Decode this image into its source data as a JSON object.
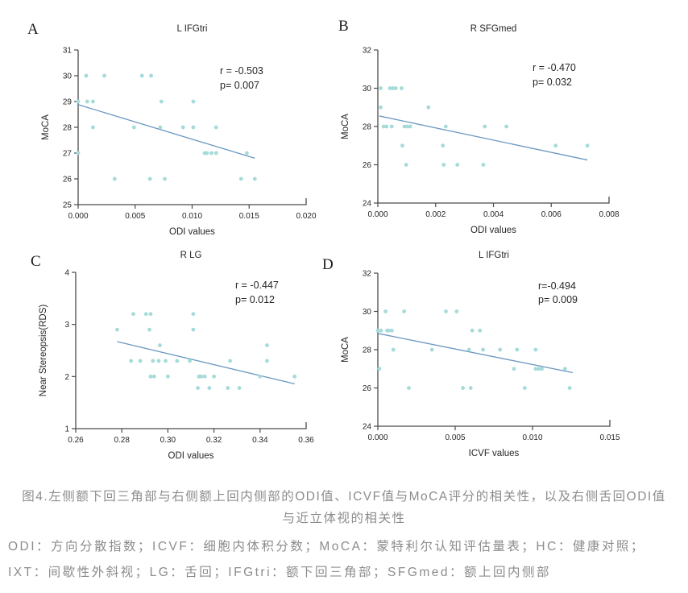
{
  "colors": {
    "point": "#a5dbd8",
    "trend": "#6b98c2",
    "axis": "#4a4a4a",
    "text": "#262626",
    "caption_text": "#8c8c8c"
  },
  "chart_data": [
    {
      "panel_label": "A",
      "type": "scatter",
      "title": "L IFGtri",
      "xlabel": "ODI values",
      "ylabel": "MoCA",
      "r_label": "r = -0.503",
      "p_label": "p= 0.007",
      "xlim": [
        0.0,
        0.02
      ],
      "ylim": [
        25,
        31
      ],
      "xticks": [
        0.0,
        0.005,
        0.01,
        0.015,
        0.02
      ],
      "xtick_labels": [
        "0.000",
        "0.005",
        "0.010",
        "0.015",
        "0.020"
      ],
      "yticks": [
        25,
        26,
        27,
        28,
        29,
        30,
        31
      ],
      "ytick_labels": [
        "25",
        "26",
        "27",
        "28",
        "29",
        "30",
        "31"
      ],
      "points": [
        [
          0.0007,
          30
        ],
        [
          0.0023,
          30
        ],
        [
          0.0056,
          30
        ],
        [
          0.0064,
          30
        ],
        [
          0.0,
          29
        ],
        [
          0.0008,
          29
        ],
        [
          0.0013,
          29
        ],
        [
          0.0073,
          29
        ],
        [
          0.0101,
          29
        ],
        [
          0.0013,
          28
        ],
        [
          0.0049,
          28
        ],
        [
          0.0072,
          28
        ],
        [
          0.0092,
          28
        ],
        [
          0.0101,
          28
        ],
        [
          0.0121,
          28
        ],
        [
          0.0,
          27
        ],
        [
          0.0111,
          27
        ],
        [
          0.0113,
          27
        ],
        [
          0.0117,
          27
        ],
        [
          0.0121,
          27
        ],
        [
          0.0148,
          27
        ],
        [
          0.0032,
          26
        ],
        [
          0.0063,
          26
        ],
        [
          0.0076,
          26
        ],
        [
          0.0143,
          26
        ],
        [
          0.0155,
          26
        ]
      ],
      "trend": {
        "x1": 0.0,
        "y1": 28.88,
        "x2": 0.0155,
        "y2": 26.8
      }
    },
    {
      "panel_label": "B",
      "type": "scatter",
      "title": "R SFGmed",
      "xlabel": "ODI values",
      "ylabel": "MoCA",
      "r_label": "r = -0.470",
      "p_label": "p= 0.032",
      "xlim": [
        0.0,
        0.008
      ],
      "ylim": [
        24,
        32
      ],
      "xticks": [
        0.0,
        0.002,
        0.004,
        0.006,
        0.008
      ],
      "xtick_labels": [
        "0.000",
        "0.002",
        "0.004",
        "0.006",
        "0.008"
      ],
      "yticks": [
        24,
        26,
        28,
        30,
        32
      ],
      "ytick_labels": [
        "24",
        "26",
        "28",
        "30",
        "32"
      ],
      "points": [
        [
          0.0001,
          30
        ],
        [
          0.00042,
          30
        ],
        [
          0.00052,
          30
        ],
        [
          0.00062,
          30
        ],
        [
          0.00082,
          30
        ],
        [
          0.0001,
          29
        ],
        [
          0.00175,
          29
        ],
        [
          0.0002,
          28
        ],
        [
          0.0003,
          28
        ],
        [
          0.00048,
          28
        ],
        [
          0.00092,
          28
        ],
        [
          0.00102,
          28
        ],
        [
          0.00112,
          28
        ],
        [
          0.00235,
          28
        ],
        [
          0.0037,
          28
        ],
        [
          0.00445,
          28
        ],
        [
          0.00085,
          27
        ],
        [
          0.00225,
          27
        ],
        [
          0.00615,
          27
        ],
        [
          0.00725,
          27
        ],
        [
          0.00098,
          26
        ],
        [
          0.00228,
          26
        ],
        [
          0.00275,
          26
        ],
        [
          0.00365,
          26
        ]
      ],
      "trend": {
        "x1": 5e-05,
        "y1": 28.55,
        "x2": 0.00725,
        "y2": 26.25
      }
    },
    {
      "panel_label": "C",
      "type": "scatter",
      "title": "R LG",
      "xlabel": "ODI values",
      "ylabel": "Near Stereopsis(RDS)",
      "r_label": "r = -0.447",
      "p_label": "p= 0.012",
      "xlim": [
        0.26,
        0.36
      ],
      "ylim": [
        1,
        4
      ],
      "xticks": [
        0.26,
        0.28,
        0.3,
        0.32,
        0.34,
        0.36
      ],
      "xtick_labels": [
        "0.26",
        "0.28",
        "0.30",
        "0.32",
        "0.34",
        "0.36"
      ],
      "yticks": [
        1,
        2,
        3,
        4
      ],
      "ytick_labels": [
        "1",
        "2",
        "3",
        "4"
      ],
      "points": [
        [
          0.285,
          3.2
        ],
        [
          0.2905,
          3.2
        ],
        [
          0.2925,
          3.2
        ],
        [
          0.311,
          3.2
        ],
        [
          0.278,
          2.9
        ],
        [
          0.292,
          2.9
        ],
        [
          0.311,
          2.9
        ],
        [
          0.2965,
          2.6
        ],
        [
          0.343,
          2.6
        ],
        [
          0.284,
          2.3
        ],
        [
          0.288,
          2.3
        ],
        [
          0.2935,
          2.3
        ],
        [
          0.296,
          2.3
        ],
        [
          0.299,
          2.3
        ],
        [
          0.304,
          2.3
        ],
        [
          0.3095,
          2.3
        ],
        [
          0.327,
          2.3
        ],
        [
          0.343,
          2.3
        ],
        [
          0.2925,
          2.0
        ],
        [
          0.294,
          2.0
        ],
        [
          0.3,
          2.0
        ],
        [
          0.3135,
          2.0
        ],
        [
          0.3145,
          2.0
        ],
        [
          0.316,
          2.0
        ],
        [
          0.32,
          2.0
        ],
        [
          0.34,
          2.0
        ],
        [
          0.355,
          2.0
        ],
        [
          0.313,
          1.78
        ],
        [
          0.318,
          1.78
        ],
        [
          0.326,
          1.78
        ],
        [
          0.331,
          1.78
        ]
      ],
      "trend": {
        "x1": 0.278,
        "y1": 2.67,
        "x2": 0.355,
        "y2": 1.86
      }
    },
    {
      "panel_label": "D",
      "type": "scatter",
      "title": "L IFGtri",
      "xlabel": "ICVF values",
      "ylabel": "MoCA",
      "r_label": "r=-0.494",
      "p_label": "p= 0.009",
      "xlim": [
        0.0,
        0.015
      ],
      "ylim": [
        24,
        32
      ],
      "xticks": [
        0.0,
        0.005,
        0.01,
        0.015
      ],
      "xtick_labels": [
        "0.000",
        "0.005",
        "0.010",
        "0.015"
      ],
      "yticks": [
        24,
        26,
        28,
        30,
        32
      ],
      "ytick_labels": [
        "24",
        "26",
        "28",
        "30",
        "32"
      ],
      "points": [
        [
          0.0005,
          30
        ],
        [
          0.0017,
          30
        ],
        [
          0.0044,
          30
        ],
        [
          0.0051,
          30
        ],
        [
          0.0,
          29
        ],
        [
          0.0002,
          29
        ],
        [
          0.0006,
          29
        ],
        [
          0.0007,
          29
        ],
        [
          0.0009,
          29
        ],
        [
          0.0061,
          29
        ],
        [
          0.0066,
          29
        ],
        [
          0.001,
          28
        ],
        [
          0.0035,
          28
        ],
        [
          0.0059,
          28
        ],
        [
          0.0068,
          28
        ],
        [
          0.0079,
          28
        ],
        [
          0.009,
          28
        ],
        [
          0.0102,
          28
        ],
        [
          0.0001,
          27
        ],
        [
          0.0088,
          27
        ],
        [
          0.0102,
          27
        ],
        [
          0.0104,
          27
        ],
        [
          0.0106,
          27
        ],
        [
          0.0121,
          27
        ],
        [
          0.002,
          26
        ],
        [
          0.0055,
          26
        ],
        [
          0.006,
          26
        ],
        [
          0.0095,
          26
        ],
        [
          0.0124,
          26
        ]
      ],
      "trend": {
        "x1": 0.0,
        "y1": 28.85,
        "x2": 0.0126,
        "y2": 26.8
      }
    }
  ],
  "caption": {
    "line1": "图4.左侧额下回三角部与右侧额上回内侧部的ODI值、ICVF值与MoCA评分的相关性，以及右侧舌回ODI值",
    "line2": "与近立体视的相关性",
    "footnote": "ODI：方向分散指数；ICVF：细胞内体积分数；MoCA：蒙特利尔认知评估量表；HC：健康对照；IXT：间歇性外斜视；LG：舌回；IFGtri：额下回三角部；SFGmed：额上回内侧部"
  }
}
